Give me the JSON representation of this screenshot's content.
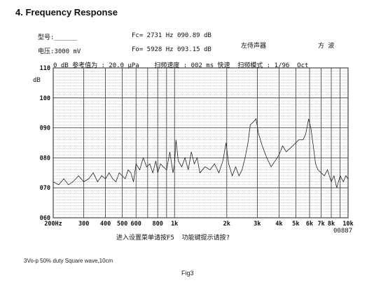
{
  "section_title": "4. Frequency Response",
  "info": {
    "model_label": "型号:______",
    "voltage_label": "电压:3000 mV",
    "fc_readout": "Fc= 2731 Hz 090.89 dB",
    "fo_readout": "Fo= 5928 Hz 093.15 dB",
    "speaker_label": "左侍声器",
    "wave_label": "方 波"
  },
  "status_line": "0 dB 参考值为 : 20.0 μPa    扫频速度 : 002 ms 快速  扫频模式 : 1/96  Oct",
  "footer_prompt": "进入设置菜单请按F5  功能键提示请按?",
  "counter": "00887",
  "caption": "3Vo-p 50% duty Square wave,10cm",
  "figure_label": "Fig3",
  "chart_data": {
    "type": "line",
    "x_scale": "log",
    "xlim": [
      200,
      10000
    ],
    "ylim": [
      60,
      110
    ],
    "ylabel": "dB",
    "grid": true,
    "y_ticks": [
      {
        "value": 110,
        "label": "110"
      },
      {
        "value": 100,
        "label": "100"
      },
      {
        "value": 90,
        "label": "090"
      },
      {
        "value": 80,
        "label": "080"
      },
      {
        "value": 70,
        "label": "070"
      },
      {
        "value": 60,
        "label": "060"
      }
    ],
    "x_ticks": [
      {
        "value": 200,
        "label": "200Hz"
      },
      {
        "value": 300,
        "label": "300"
      },
      {
        "value": 400,
        "label": "400"
      },
      {
        "value": 500,
        "label": "500"
      },
      {
        "value": 600,
        "label": "600"
      },
      {
        "value": 800,
        "label": "800"
      },
      {
        "value": 1000,
        "label": "1k"
      },
      {
        "value": 2000,
        "label": "2k"
      },
      {
        "value": 3000,
        "label": "3k"
      },
      {
        "value": 4000,
        "label": "4k"
      },
      {
        "value": 5000,
        "label": "5k"
      },
      {
        "value": 6000,
        "label": "6k"
      },
      {
        "value": 7000,
        "label": "7k"
      },
      {
        "value": 8000,
        "label": "8k"
      },
      {
        "value": 10000,
        "label": "10k"
      }
    ],
    "series": [
      {
        "x": [
          200,
          215,
          230,
          245,
          260,
          280,
          300,
          320,
          340,
          360,
          380,
          400,
          420,
          440,
          460,
          480,
          500,
          520,
          540,
          560,
          580,
          600,
          630,
          660,
          690,
          720,
          750,
          780,
          800,
          830,
          860,
          900,
          940,
          980,
          1000,
          1020,
          1050,
          1100,
          1150,
          1200,
          1250,
          1300,
          1350,
          1400,
          1500,
          1600,
          1700,
          1800,
          1900,
          1980,
          2050,
          2150,
          2250,
          2350,
          2450,
          2550,
          2650,
          2731,
          2850,
          2950,
          3050,
          3200,
          3400,
          3600,
          3800,
          4000,
          4200,
          4400,
          4600,
          4800,
          5000,
          5200,
          5500,
          5700,
          5928,
          6100,
          6300,
          6500,
          6700,
          7000,
          7300,
          7600,
          8000,
          8300,
          8600,
          9000,
          9400,
          9700,
          10000
        ],
        "y": [
          72,
          71,
          73,
          71,
          72,
          74,
          72,
          73,
          75,
          72,
          74,
          73,
          75,
          73,
          72,
          75,
          74,
          73,
          76,
          75,
          72,
          78,
          76,
          80,
          77,
          78,
          75,
          79,
          75,
          78,
          77,
          76,
          82,
          75,
          78,
          86,
          79,
          77,
          80,
          76,
          82,
          78,
          80,
          75,
          77,
          76,
          78,
          75,
          79,
          85,
          78,
          74,
          77,
          74,
          76,
          80,
          85,
          91,
          92,
          93,
          88,
          84,
          80,
          77,
          79,
          81,
          84,
          82,
          83,
          84,
          85,
          86,
          86,
          88,
          93,
          90,
          84,
          78,
          76,
          75,
          74,
          76,
          72,
          74,
          70,
          74,
          72,
          74,
          73
        ]
      }
    ]
  }
}
